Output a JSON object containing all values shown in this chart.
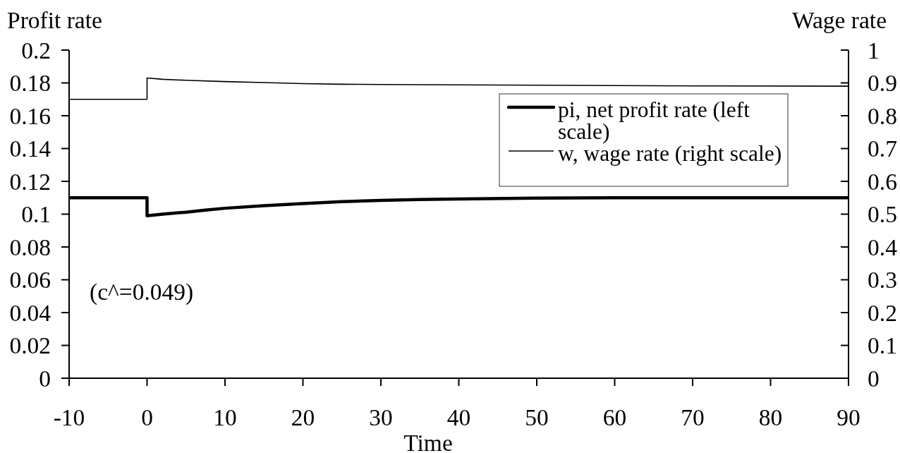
{
  "chart_data": {
    "type": "line",
    "xlabel": "Time",
    "ylabel": "Profit rate",
    "y2label": "Wage rate",
    "annotations": [
      "(c^=0.049)"
    ],
    "xlim": [
      -10,
      90
    ],
    "xticks": [
      -10,
      0,
      10,
      20,
      30,
      40,
      50,
      60,
      70,
      80,
      90
    ],
    "ylim": [
      0,
      0.2
    ],
    "yticks": [
      0,
      0.02,
      0.04,
      0.06,
      0.08,
      0.1,
      0.12,
      0.14,
      0.16,
      0.18,
      0.2
    ],
    "y2lim": [
      0,
      1
    ],
    "y2ticks": [
      0,
      0.1,
      0.2,
      0.3,
      0.4,
      0.5,
      0.6,
      0.7,
      0.8,
      0.9,
      1
    ],
    "legend": "top right",
    "line_style": "solid",
    "series": [
      {
        "name": "pi, net profit rate (left scale)",
        "color": "#000000",
        "x": [
          -10,
          0,
          0,
          2,
          5,
          7.5,
          10,
          15,
          20,
          25,
          30,
          35,
          40,
          50,
          60,
          70,
          80,
          90
        ],
        "values": [
          0.11,
          0.11,
          0.099,
          0.1,
          0.1012,
          0.1025,
          0.1036,
          0.1052,
          0.1065,
          0.1076,
          0.1084,
          0.1089,
          0.1093,
          0.1098,
          0.11,
          0.11,
          0.11,
          0.11
        ]
      },
      {
        "name": "w, wage rate (right scale)",
        "color": "#000000",
        "axis": "y2",
        "x": [
          -10,
          0,
          0,
          2,
          5,
          10,
          15,
          20,
          25,
          30,
          40,
          50,
          70,
          90
        ],
        "values": [
          0.85,
          0.85,
          0.915,
          0.911,
          0.908,
          0.904,
          0.901,
          0.898,
          0.896,
          0.895,
          0.894,
          0.893,
          0.891,
          0.89
        ]
      }
    ]
  }
}
